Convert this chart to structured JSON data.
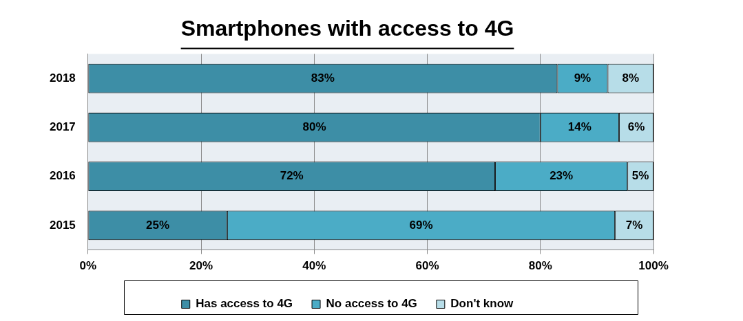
{
  "chart_data": {
    "type": "bar",
    "title": "Smartphones with access to 4G",
    "orientation": "horizontal",
    "stacked": true,
    "categories": [
      "2018",
      "2017",
      "2016",
      "2015"
    ],
    "series": [
      {
        "name": "Has access to 4G",
        "color": "#3d8ea6",
        "values": [
          83,
          80,
          72,
          24.6
        ],
        "value_labels": [
          "83%",
          "80%",
          "72%",
          "25%"
        ]
      },
      {
        "name": "No access to 4G",
        "color": "#4bacc6",
        "values": [
          8.9,
          13.9,
          23.4,
          68.6
        ],
        "value_labels": [
          "9%",
          "14%",
          "23%",
          "69%"
        ]
      },
      {
        "name": "Don't know",
        "color": "#b7dde8",
        "values": [
          8.1,
          6.1,
          4.6,
          6.8
        ],
        "value_labels": [
          "8%",
          "6%",
          "5%",
          "7%"
        ]
      }
    ],
    "xlim": [
      0,
      100
    ],
    "xticks": [
      {
        "value": 0,
        "label": "0%"
      },
      {
        "value": 20,
        "label": "20%"
      },
      {
        "value": 40,
        "label": "40%"
      },
      {
        "value": 60,
        "label": "60%"
      },
      {
        "value": 80,
        "label": "80%"
      },
      {
        "value": 100,
        "label": "100%"
      }
    ],
    "grid": "x",
    "legend": "bottom"
  }
}
